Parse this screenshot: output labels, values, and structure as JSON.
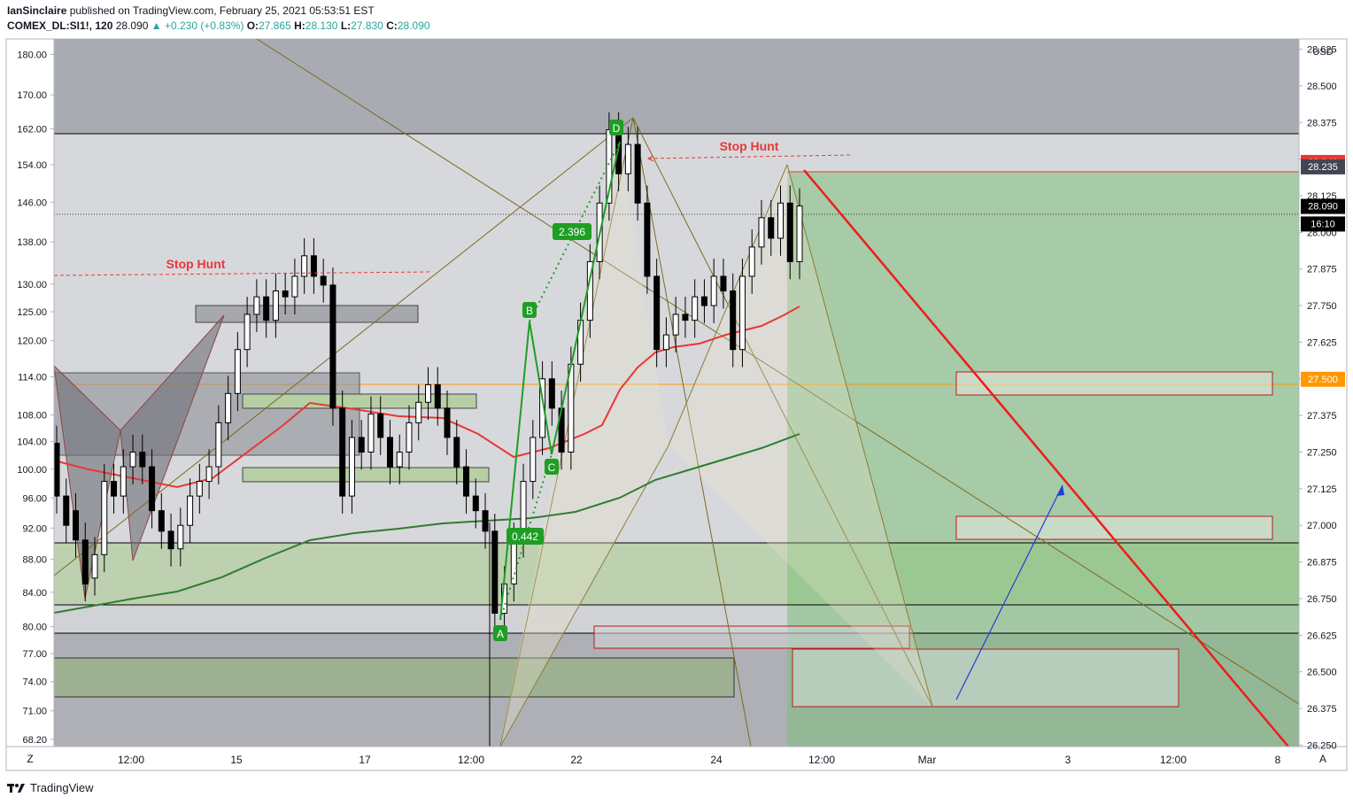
{
  "header": {
    "author": "IanSinclaire",
    "published_text": " published on TradingView.com, February 25, 2021 05:53:51 EST",
    "symbol": "COMEX_DL:SI1!, 120",
    "last": "28.090",
    "change": "▲ +0.230 (+0.83%)",
    "o_label": "O:",
    "o": "27.865",
    "h_label": "H:",
    "h": "28.130",
    "l_label": "L:",
    "l": "27.830",
    "c_label": "C:",
    "c": "28.090"
  },
  "footer": {
    "brand": "TradingView"
  },
  "chart_data": {
    "type": "candlestick",
    "currency": "USD",
    "right_axis": {
      "ticks": [
        "28.625",
        "28.500",
        "28.375",
        "28.250",
        "28.125",
        "28.000",
        "27.875",
        "27.750",
        "27.625",
        "27.500",
        "27.375",
        "27.250",
        "27.125",
        "27.000",
        "26.875",
        "26.750",
        "26.625",
        "26.500",
        "26.375",
        "26.250"
      ],
      "ylim": [
        26.245,
        28.66
      ],
      "price_tags": [
        {
          "label": "28.240",
          "value": 28.24,
          "color": "#e53935"
        },
        {
          "label": "28.235",
          "value": 28.225,
          "color": "#434651"
        },
        {
          "label": "28.090",
          "value": 28.09,
          "color": "#000000"
        },
        {
          "label": "16:10",
          "value": 28.03,
          "color": "#000000"
        },
        {
          "label": "27.500",
          "value": 27.5,
          "color": "#ff9800"
        }
      ]
    },
    "left_axis": {
      "ticks": [
        "180.00",
        "170.00",
        "162.00",
        "154.00",
        "146.00",
        "138.00",
        "130.00",
        "125.00",
        "120.00",
        "114.00",
        "108.00",
        "104.00",
        "100.00",
        "96.00",
        "92.00",
        "88.00",
        "84.00",
        "80.00",
        "77.00",
        "74.00",
        "71.00",
        "68.20"
      ],
      "scale": "log",
      "ylim": [
        67.5,
        184
      ]
    },
    "x_axis": {
      "ticks": [
        "12:00",
        "15",
        "17",
        "12:00",
        "22",
        "24",
        "12:00",
        "Mar",
        "3",
        "12:00",
        "8"
      ],
      "left_corner": "Z",
      "right_corner": "A"
    },
    "annotations": {
      "stop_hunt_left": "Stop Hunt",
      "stop_hunt_right": "Stop Hunt",
      "pattern_points": [
        "A",
        "B",
        "C",
        "D"
      ],
      "ratios": [
        "0.442",
        "2.396"
      ]
    },
    "levels": {
      "horizontal_line": 27.5,
      "dotted_last_price": 28.09,
      "take_profit_zone_top": 28.24
    },
    "candles": [
      [
        27.28,
        27.1
      ],
      [
        27.1,
        27.0
      ],
      [
        27.05,
        26.95
      ],
      [
        26.95,
        26.8
      ],
      [
        26.82,
        26.9
      ],
      [
        26.9,
        27.15
      ],
      [
        27.15,
        27.1
      ],
      [
        27.1,
        27.2
      ],
      [
        27.2,
        27.25
      ],
      [
        27.25,
        27.2
      ],
      [
        27.2,
        27.05
      ],
      [
        27.05,
        26.98
      ],
      [
        26.98,
        26.92
      ],
      [
        26.92,
        27.0
      ],
      [
        27.0,
        27.1
      ],
      [
        27.1,
        27.15
      ],
      [
        27.15,
        27.2
      ],
      [
        27.2,
        27.35
      ],
      [
        27.35,
        27.45
      ],
      [
        27.45,
        27.6
      ],
      [
        27.6,
        27.72
      ],
      [
        27.72,
        27.78
      ],
      [
        27.78,
        27.7
      ],
      [
        27.7,
        27.8
      ],
      [
        27.8,
        27.78
      ],
      [
        27.78,
        27.85
      ],
      [
        27.85,
        27.92
      ],
      [
        27.92,
        27.85
      ],
      [
        27.85,
        27.82
      ],
      [
        27.82,
        27.4
      ],
      [
        27.4,
        27.1
      ],
      [
        27.1,
        27.3
      ],
      [
        27.3,
        27.25
      ],
      [
        27.25,
        27.38
      ],
      [
        27.38,
        27.3
      ],
      [
        27.3,
        27.2
      ],
      [
        27.2,
        27.25
      ],
      [
        27.25,
        27.35
      ],
      [
        27.35,
        27.42
      ],
      [
        27.42,
        27.48
      ],
      [
        27.48,
        27.4
      ],
      [
        27.4,
        27.3
      ],
      [
        27.3,
        27.2
      ],
      [
        27.2,
        27.1
      ],
      [
        27.1,
        27.05
      ],
      [
        27.05,
        26.98
      ],
      [
        26.98,
        26.7
      ],
      [
        26.7,
        26.8
      ],
      [
        26.8,
        26.95
      ],
      [
        26.95,
        27.15
      ],
      [
        27.15,
        27.3
      ],
      [
        27.3,
        27.5
      ],
      [
        27.5,
        27.4
      ],
      [
        27.4,
        27.25
      ],
      [
        27.25,
        27.55
      ],
      [
        27.55,
        27.7
      ],
      [
        27.7,
        27.9
      ],
      [
        27.9,
        28.1
      ],
      [
        28.1,
        28.35
      ],
      [
        28.35,
        28.2
      ],
      [
        28.2,
        28.3
      ],
      [
        28.3,
        28.1
      ],
      [
        28.1,
        27.85
      ],
      [
        27.85,
        27.6
      ],
      [
        27.6,
        27.65
      ],
      [
        27.65,
        27.72
      ],
      [
        27.72,
        27.7
      ],
      [
        27.7,
        27.78
      ],
      [
        27.78,
        27.75
      ],
      [
        27.75,
        27.85
      ],
      [
        27.85,
        27.8
      ],
      [
        27.8,
        27.6
      ],
      [
        27.6,
        27.85
      ],
      [
        27.85,
        27.95
      ],
      [
        27.95,
        28.05
      ],
      [
        28.05,
        27.98
      ],
      [
        27.98,
        28.1
      ],
      [
        28.1,
        27.9
      ],
      [
        27.9,
        28.09
      ]
    ]
  }
}
